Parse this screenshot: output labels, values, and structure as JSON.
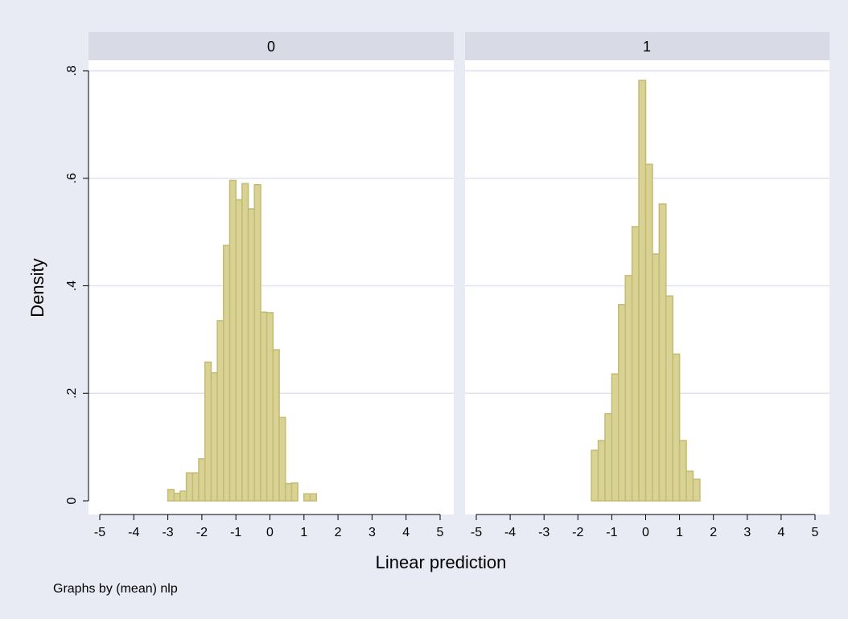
{
  "chart_data": {
    "type": "bar",
    "subtype": "histogram",
    "ylabel": "Density",
    "xlabel": "Linear prediction",
    "note": "Graphs by (mean) nlp",
    "xlim": [
      -5.5,
      5.5
    ],
    "ylim": [
      0,
      0.8
    ],
    "x_ticks": [
      "-5",
      "-4",
      "-3",
      "-2",
      "-1",
      "0",
      "1",
      "2",
      "3",
      "4",
      "5"
    ],
    "y_ticks": [
      {
        "value": 0,
        "label": "0"
      },
      {
        "value": 0.2,
        "label": ".2"
      },
      {
        "value": 0.4,
        "label": ".4"
      },
      {
        "value": 0.6,
        "label": ".6"
      },
      {
        "value": 0.8,
        "label": ".8"
      }
    ],
    "grid": true,
    "colors": {
      "background": "#e9ebf4",
      "panel": "#ffffff",
      "strip": "#d8dae5",
      "bar_fill": "#d8d295",
      "bar_edge": "#c6bc74",
      "grid": "#dfe3ee",
      "axis": "#000000"
    },
    "panels": [
      {
        "title": "0",
        "bin_width": 0.182,
        "bins": [
          {
            "x0": -3.0,
            "value": 0.021
          },
          {
            "x0": -2.818,
            "value": 0.014
          },
          {
            "x0": -2.636,
            "value": 0.018
          },
          {
            "x0": -2.455,
            "value": 0.052
          },
          {
            "x0": -2.273,
            "value": 0.052
          },
          {
            "x0": -2.091,
            "value": 0.078
          },
          {
            "x0": -1.909,
            "value": 0.258
          },
          {
            "x0": -1.727,
            "value": 0.238
          },
          {
            "x0": -1.545,
            "value": 0.335
          },
          {
            "x0": -1.364,
            "value": 0.475
          },
          {
            "x0": -1.182,
            "value": 0.596
          },
          {
            "x0": -1.0,
            "value": 0.56
          },
          {
            "x0": -0.818,
            "value": 0.59
          },
          {
            "x0": -0.636,
            "value": 0.543
          },
          {
            "x0": -0.455,
            "value": 0.588
          },
          {
            "x0": -0.273,
            "value": 0.351
          },
          {
            "x0": -0.091,
            "value": 0.35
          },
          {
            "x0": 0.091,
            "value": 0.281
          },
          {
            "x0": 0.273,
            "value": 0.155
          },
          {
            "x0": 0.455,
            "value": 0.032
          },
          {
            "x0": 0.636,
            "value": 0.033
          },
          {
            "x0": 1.0,
            "value": 0.013
          },
          {
            "x0": 1.182,
            "value": 0.013
          }
        ]
      },
      {
        "title": "1",
        "bin_width": 0.2,
        "bins": [
          {
            "x0": -1.6,
            "value": 0.094
          },
          {
            "x0": -1.4,
            "value": 0.112
          },
          {
            "x0": -1.2,
            "value": 0.162
          },
          {
            "x0": -1.0,
            "value": 0.236
          },
          {
            "x0": -0.8,
            "value": 0.365
          },
          {
            "x0": -0.6,
            "value": 0.419
          },
          {
            "x0": -0.4,
            "value": 0.51
          },
          {
            "x0": -0.2,
            "value": 0.782
          },
          {
            "x0": 0.0,
            "value": 0.626
          },
          {
            "x0": 0.2,
            "value": 0.459
          },
          {
            "x0": 0.4,
            "value": 0.552
          },
          {
            "x0": 0.6,
            "value": 0.381
          },
          {
            "x0": 0.8,
            "value": 0.273
          },
          {
            "x0": 1.0,
            "value": 0.112
          },
          {
            "x0": 1.2,
            "value": 0.055
          },
          {
            "x0": 1.4,
            "value": 0.04
          }
        ]
      }
    ]
  }
}
